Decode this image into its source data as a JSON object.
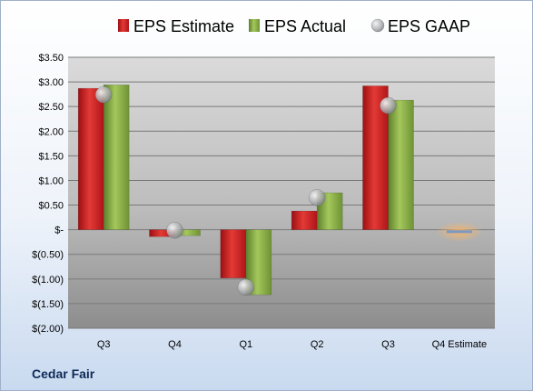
{
  "company_label": "Cedar Fair",
  "chart_data": {
    "type": "bar",
    "title": "",
    "xlabel": "",
    "ylabel": "",
    "categories": [
      "Q3",
      "Q4",
      "Q1",
      "Q2",
      "Q3",
      "Q4 Estimate"
    ],
    "series": [
      {
        "name": "EPS Estimate",
        "type": "bar",
        "color": "#c0151b",
        "values": [
          2.87,
          -0.14,
          -0.98,
          0.38,
          2.92,
          null
        ]
      },
      {
        "name": "EPS Actual",
        "type": "bar",
        "color": "#7ba23f",
        "values": [
          2.94,
          -0.12,
          -1.32,
          0.75,
          2.63,
          null
        ]
      },
      {
        "name": "EPS GAAP",
        "type": "scatter",
        "color": "#a6a8ab",
        "values": [
          2.74,
          -0.01,
          -1.17,
          0.65,
          2.52,
          null
        ]
      }
    ],
    "estimate": {
      "category": "Q4 Estimate",
      "value": -0.04,
      "color": "#f0a857"
    },
    "ylim": [
      -2.0,
      3.5
    ],
    "yticks": [
      3.5,
      3.0,
      2.5,
      2.0,
      1.5,
      1.0,
      0.5,
      0,
      -0.5,
      -1.0,
      -1.5,
      -2.0
    ],
    "ytick_labels": [
      "$3.50",
      "$3.00",
      "$2.50",
      "$2.00",
      "$1.50",
      "$1.00",
      "$0.50",
      "$-",
      "$(0.50)",
      "$(1.00)",
      "$(1.50)",
      "$(2.00)"
    ],
    "grid": true,
    "legend_position": "top"
  }
}
